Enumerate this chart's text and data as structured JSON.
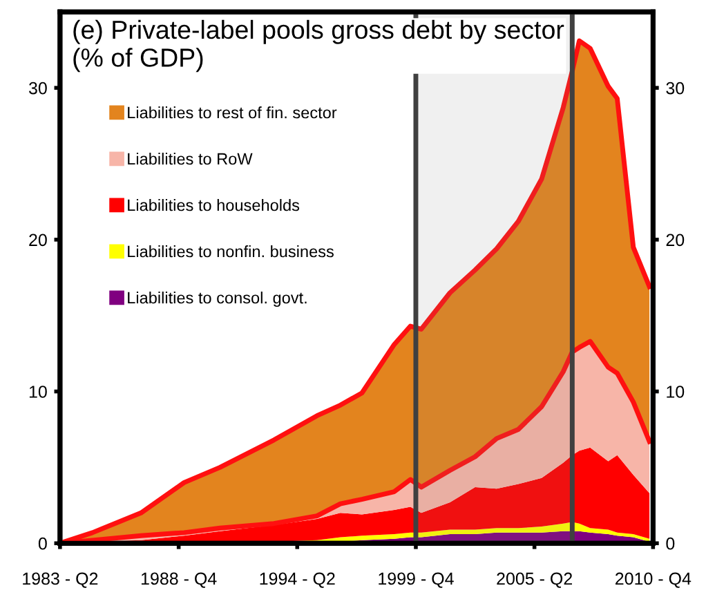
{
  "chart_data": {
    "type": "area",
    "stacked": true,
    "title": "(e) Private-label pools gross debt by sector\n(% of GDP)",
    "x": [
      "1983-04",
      "1984-10",
      "1987-01",
      "1989-01",
      "1990-09",
      "1993-03",
      "1995-03",
      "1996-04",
      "1997-04",
      "1998-10",
      "1999-07",
      "2000-01",
      "2001-05",
      "2002-07",
      "2003-07",
      "2004-07",
      "2005-08",
      "2006-08",
      "2007-01",
      "2007-05",
      "2007-11",
      "2008-09",
      "2009-02",
      "2009-11",
      "2010-08"
    ],
    "series": [
      {
        "name": "Liabilities to consol. govt.",
        "color": "#800080",
        "values": [
          0,
          0,
          0,
          0,
          0,
          0,
          0,
          0.1,
          0.2,
          0.3,
          0.4,
          0.4,
          0.6,
          0.6,
          0.7,
          0.7,
          0.7,
          0.8,
          0.8,
          0.8,
          0.7,
          0.6,
          0.5,
          0.4,
          0.1
        ]
      },
      {
        "name": "Liabilities to nonfin. business",
        "color": "#ffff00",
        "values": [
          0,
          0,
          0,
          0,
          0,
          0.1,
          0.2,
          0.3,
          0.3,
          0.3,
          0.3,
          0.3,
          0.3,
          0.3,
          0.3,
          0.3,
          0.4,
          0.5,
          0.6,
          0.5,
          0.3,
          0.3,
          0.2,
          0.2,
          0.2
        ]
      },
      {
        "name": "Liabilities to households",
        "color": "#ff0000",
        "values": [
          0,
          0.1,
          0.2,
          0.5,
          0.8,
          1.1,
          1.4,
          1.6,
          1.4,
          1.6,
          1.7,
          1.3,
          1.8,
          2.8,
          2.6,
          2.9,
          3.2,
          4.0,
          4.4,
          4.8,
          5.3,
          4.5,
          5.1,
          3.9,
          3.0
        ]
      },
      {
        "name": "Liabilities to RoW",
        "color": "#f7b5a8",
        "values": [
          0,
          0.1,
          0.3,
          0.2,
          0.2,
          0.1,
          0.2,
          0.6,
          1.0,
          1.2,
          1.8,
          1.7,
          2.1,
          2.0,
          3.3,
          3.6,
          4.7,
          6.0,
          6.8,
          6.8,
          7.0,
          6.2,
          5.4,
          4.8,
          3.4
        ]
      },
      {
        "name": "Liabilities to rest of fin. sector",
        "color": "#e3841e",
        "values": [
          0,
          0.5,
          1.5,
          3.3,
          4.0,
          5.5,
          6.6,
          6.5,
          7.0,
          9.7,
          10.1,
          10.4,
          11.7,
          12.3,
          12.5,
          13.7,
          15.0,
          17.4,
          18.5,
          20.2,
          19.3,
          18.5,
          18.1,
          10.2,
          10.2
        ]
      }
    ],
    "xlim": [
      "1983-04",
      "2010-10"
    ],
    "xticks": [
      {
        "value": "1983-04",
        "label": "1983 - Q2"
      },
      {
        "value": "1988-10",
        "label": "1988 - Q4"
      },
      {
        "value": "1994-04",
        "label": "1994 - Q2"
      },
      {
        "value": "1999-10",
        "label": "1999 - Q4"
      },
      {
        "value": "2005-04",
        "label": "2005 - Q2"
      },
      {
        "value": "2010-10",
        "label": "2010 - Q4"
      }
    ],
    "ylim": [
      0,
      35
    ],
    "yticks": [
      0,
      10,
      20,
      30
    ],
    "y2lim": [
      0,
      35
    ],
    "y2ticks": [
      0,
      10,
      20,
      30
    ],
    "bands": [
      {
        "axis": "x",
        "from": "1999-10",
        "to": "2007-01",
        "color": "#808080"
      }
    ],
    "legend": "top left",
    "grid": false
  }
}
